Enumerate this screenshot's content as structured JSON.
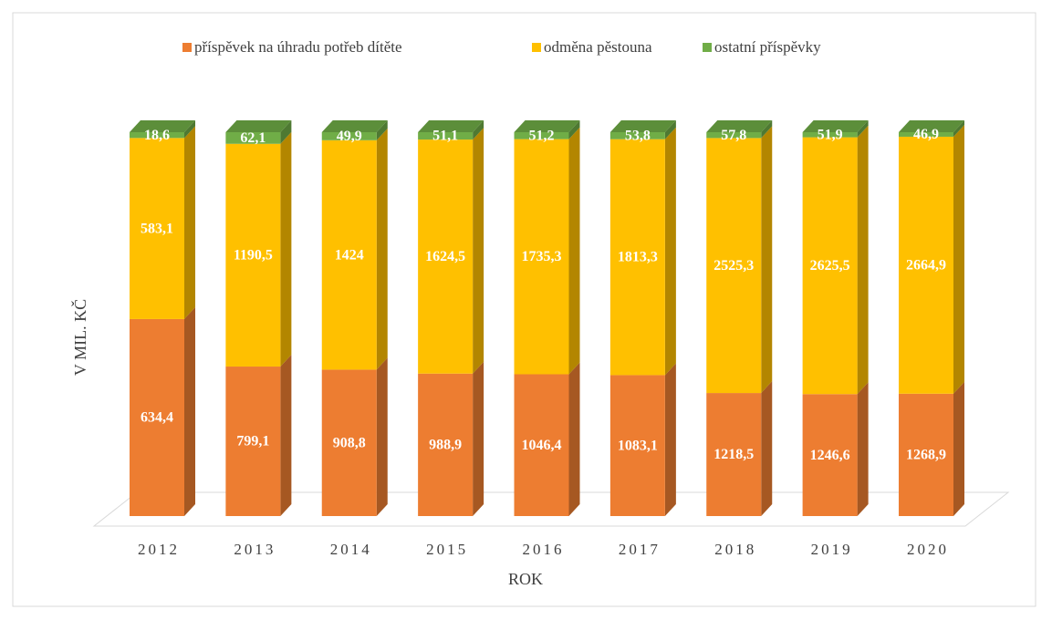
{
  "chart_data": {
    "type": "bar",
    "stacking": "percent",
    "x_label": "ROK",
    "y_label": "V MIL. KČ",
    "legend": "top",
    "categories": [
      "2012",
      "2013",
      "2014",
      "2015",
      "2016",
      "2017",
      "2018",
      "2019",
      "2020"
    ],
    "series": [
      {
        "name": "příspěvek na úhradu potřeb dítěte",
        "color": "#ed7d31",
        "values": [
          634.4,
          799.1,
          908.8,
          988.9,
          1046.4,
          1083.1,
          1218.5,
          1246.6,
          1268.9
        ],
        "value_labels": [
          "634,4",
          "799,1",
          "908,8",
          "988,9",
          "1046,4",
          "1083,1",
          "1218,5",
          "1246,6",
          "1268,9"
        ]
      },
      {
        "name": "odměna pěstouna",
        "color": "#ffc000",
        "values": [
          583.1,
          1190.5,
          1424,
          1624.5,
          1735.3,
          1813.3,
          2525.3,
          2625.5,
          2664.9
        ],
        "value_labels": [
          "583,1",
          "1190,5",
          "1424",
          "1624,5",
          "1735,3",
          "1813,3",
          "2525,3",
          "2625,5",
          "2664,9"
        ]
      },
      {
        "name": "ostatní příspěvky",
        "color": "#70ad47",
        "values": [
          18.6,
          62.1,
          49.9,
          51.1,
          51.2,
          53.8,
          57.8,
          51.9,
          46.9
        ],
        "value_labels": [
          "18,6",
          "62,1",
          "49,9",
          "51,1",
          "51,2",
          "53,8",
          "57,8",
          "51,9",
          "46,9"
        ]
      }
    ]
  }
}
